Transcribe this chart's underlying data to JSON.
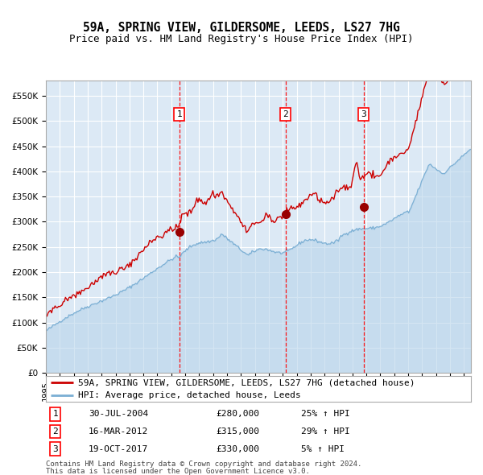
{
  "title": "59A, SPRING VIEW, GILDERSOME, LEEDS, LS27 7HG",
  "subtitle": "Price paid vs. HM Land Registry's House Price Index (HPI)",
  "ylim": [
    0,
    580000
  ],
  "yticks": [
    0,
    50000,
    100000,
    150000,
    200000,
    250000,
    300000,
    350000,
    400000,
    450000,
    500000,
    550000
  ],
  "xlim_start": 1995.0,
  "xlim_end": 2025.5,
  "background_color": "#dce9f5",
  "grid_color": "#ffffff",
  "hpi_color": "#7bafd4",
  "hpi_fill": "#b8d4ea",
  "price_color": "#cc0000",
  "sales": [
    {
      "date_label": "30-JUL-2004",
      "date_num": 2004.57,
      "price": 280000,
      "pct": "25%",
      "marker": 1
    },
    {
      "date_label": "16-MAR-2012",
      "date_num": 2012.21,
      "price": 315000,
      "pct": "29%",
      "marker": 2
    },
    {
      "date_label": "19-OCT-2017",
      "date_num": 2017.8,
      "price": 330000,
      "pct": "5%",
      "marker": 3
    }
  ],
  "legend_line1": "59A, SPRING VIEW, GILDERSOME, LEEDS, LS27 7HG (detached house)",
  "legend_line2": "HPI: Average price, detached house, Leeds",
  "footer1": "Contains HM Land Registry data © Crown copyright and database right 2024.",
  "footer2": "This data is licensed under the Open Government Licence v3.0.",
  "title_fontsize": 10.5,
  "subtitle_fontsize": 9,
  "tick_fontsize": 7.5,
  "legend_fontsize": 8,
  "table_fontsize": 8,
  "footer_fontsize": 6.5
}
